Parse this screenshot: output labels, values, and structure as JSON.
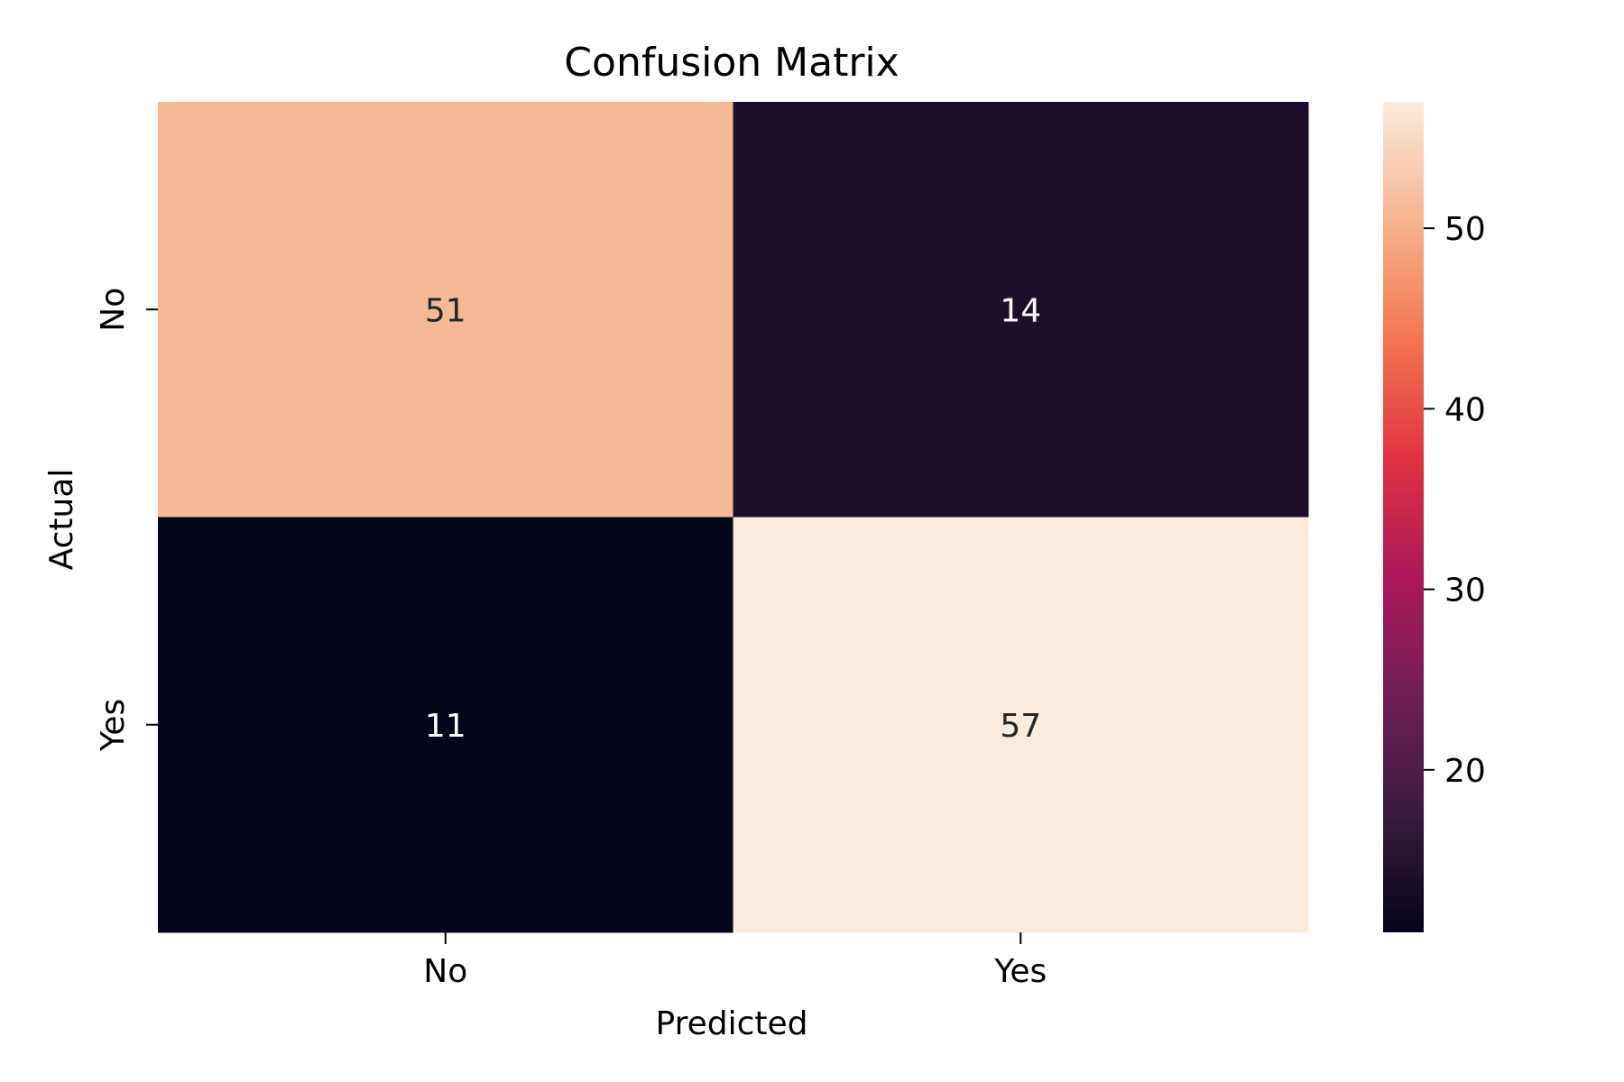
{
  "chart_data": {
    "type": "heatmap",
    "title": "Confusion Matrix",
    "xlabel": "Predicted",
    "ylabel": "Actual",
    "x_categories": [
      "No",
      "Yes"
    ],
    "y_categories": [
      "No",
      "Yes"
    ],
    "values": [
      [
        51,
        14
      ],
      [
        11,
        57
      ]
    ],
    "colorbar": {
      "vmin": 11,
      "vmax": 57,
      "ticks": [
        20,
        30,
        40,
        50
      ],
      "colormap": "rocket",
      "colormap_stops": [
        "#03051a",
        "#3b1a3f",
        "#701f57",
        "#ad1759",
        "#e13342",
        "#f37651",
        "#f6b48f",
        "#faebdd"
      ]
    },
    "annotation_colors": {
      "dark_cell": "#262626",
      "light_cell": "#ffffff"
    },
    "grid": false
  }
}
